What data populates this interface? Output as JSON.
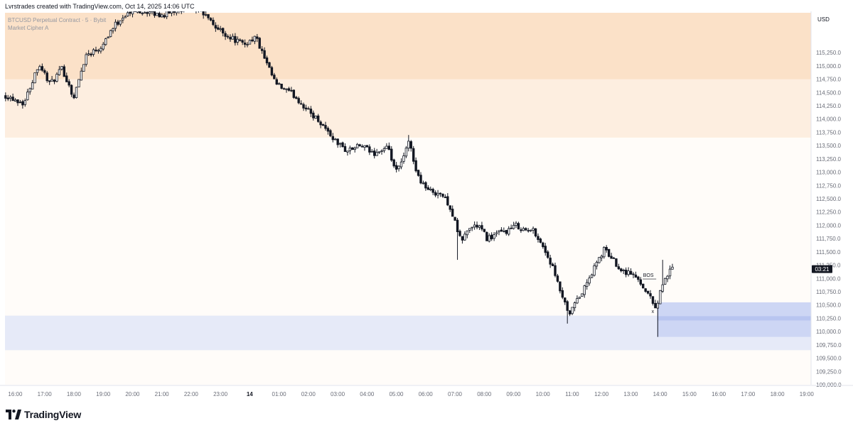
{
  "header": {
    "caption": "Lvrstrades created with TradingView.com, Oct 14, 2025 14:06 UTC"
  },
  "legend": {
    "line1": "BTCUSD Perpetual Contract · 5 · Bybit",
    "line2": "Market Cipher A"
  },
  "brand": {
    "name": "TradingView"
  },
  "colors": {
    "up": "#131722",
    "down": "#131722",
    "supply_outer": "#fdeee0",
    "supply_inner": "#fbe1c8",
    "demand_left": "#e6eaf8",
    "demand_right": "#cdd6f4",
    "demand_line": "#b8c5f0",
    "price_tag_bg": "#131722",
    "price_tag_text": "#ffffff",
    "plot_bg": "#fffcf9"
  },
  "chart_data": {
    "type": "candlestick",
    "symbol": "BTCUSD",
    "interval": "5",
    "currency_label": "USD",
    "ylim": [
      109000,
      116000
    ],
    "y_ticks": [
      109000,
      109250,
      109500,
      109750,
      110000,
      110250,
      110500,
      110750,
      111000,
      111250,
      111500,
      111750,
      112000,
      112250,
      112500,
      112750,
      113000,
      113250,
      113500,
      113750,
      114000,
      114250,
      114500,
      114750,
      115000,
      115250
    ],
    "y_tick_labels": [
      "109,000.0",
      "109,250.0",
      "109,500.0",
      "109,750.0",
      "110,000.0",
      "110,250.0",
      "110,500.0",
      "110,750.0",
      "111,000.0",
      "111,250.0",
      "111,500.0",
      "111,750.0",
      "112,000.0",
      "112,250.0",
      "112,500.0",
      "112,750.0",
      "113,000.0",
      "113,250.0",
      "113,500.0",
      "113,750.0",
      "114,000.0",
      "114,250.0",
      "114,500.0",
      "114,750.0",
      "115,000.0",
      "115,250.0"
    ],
    "x_range_hours": [
      15.65,
      43.15
    ],
    "x_ticks": [
      {
        "h": 16,
        "label": "16:00"
      },
      {
        "h": 17,
        "label": "17:00"
      },
      {
        "h": 18,
        "label": "18:00"
      },
      {
        "h": 19,
        "label": "19:00"
      },
      {
        "h": 20,
        "label": "20:00"
      },
      {
        "h": 21,
        "label": "21:00"
      },
      {
        "h": 22,
        "label": "22:00"
      },
      {
        "h": 23,
        "label": "23:00"
      },
      {
        "h": 24,
        "label": "14"
      },
      {
        "h": 25,
        "label": "01:00"
      },
      {
        "h": 26,
        "label": "02:00"
      },
      {
        "h": 27,
        "label": "03:00"
      },
      {
        "h": 28,
        "label": "04:00"
      },
      {
        "h": 29,
        "label": "05:00"
      },
      {
        "h": 30,
        "label": "06:00"
      },
      {
        "h": 31,
        "label": "07:00"
      },
      {
        "h": 32,
        "label": "08:00"
      },
      {
        "h": 33,
        "label": "09:00"
      },
      {
        "h": 34,
        "label": "10:00"
      },
      {
        "h": 35,
        "label": "11:00"
      },
      {
        "h": 36,
        "label": "12:00"
      },
      {
        "h": 37,
        "label": "13:00"
      },
      {
        "h": 38,
        "label": "14:00"
      },
      {
        "h": 39,
        "label": "15:00"
      },
      {
        "h": 40,
        "label": "16:00"
      },
      {
        "h": 41,
        "label": "17:00"
      },
      {
        "h": 42,
        "label": "18:00"
      },
      {
        "h": 43,
        "label": "19:00"
      }
    ],
    "price_path": [
      {
        "h": 15.65,
        "p": 114450
      },
      {
        "h": 16.3,
        "p": 114300
      },
      {
        "h": 16.5,
        "p": 114600
      },
      {
        "h": 16.8,
        "p": 115050
      },
      {
        "h": 17.2,
        "p": 114650
      },
      {
        "h": 17.6,
        "p": 114950
      },
      {
        "h": 18.0,
        "p": 114400
      },
      {
        "h": 18.4,
        "p": 115200
      },
      {
        "h": 18.9,
        "p": 115350
      },
      {
        "h": 19.3,
        "p": 115700
      },
      {
        "h": 19.7,
        "p": 115950
      },
      {
        "h": 20.2,
        "p": 116050
      },
      {
        "h": 21.0,
        "p": 115950
      },
      {
        "h": 21.7,
        "p": 116100
      },
      {
        "h": 22.3,
        "p": 116050
      },
      {
        "h": 22.9,
        "p": 115700
      },
      {
        "h": 23.3,
        "p": 115550
      },
      {
        "h": 23.8,
        "p": 115400
      },
      {
        "h": 24.2,
        "p": 115550
      },
      {
        "h": 24.6,
        "p": 115000
      },
      {
        "h": 24.9,
        "p": 114650
      },
      {
        "h": 25.5,
        "p": 114450
      },
      {
        "h": 26.0,
        "p": 114150
      },
      {
        "h": 26.4,
        "p": 113950
      },
      {
        "h": 26.9,
        "p": 113600
      },
      {
        "h": 27.3,
        "p": 113400
      },
      {
        "h": 27.8,
        "p": 113500
      },
      {
        "h": 28.2,
        "p": 113350
      },
      {
        "h": 28.7,
        "p": 113450
      },
      {
        "h": 29.0,
        "p": 113000
      },
      {
        "h": 29.2,
        "p": 113200
      },
      {
        "h": 29.45,
        "p": 113600
      },
      {
        "h": 29.7,
        "p": 112950
      },
      {
        "h": 30.1,
        "p": 112650
      },
      {
        "h": 30.5,
        "p": 112600
      },
      {
        "h": 30.8,
        "p": 112400
      },
      {
        "h": 31.0,
        "p": 112050
      },
      {
        "h": 31.2,
        "p": 111700
      },
      {
        "h": 31.5,
        "p": 111950
      },
      {
        "h": 31.8,
        "p": 112000
      },
      {
        "h": 32.1,
        "p": 111750
      },
      {
        "h": 32.5,
        "p": 111850
      },
      {
        "h": 32.8,
        "p": 111900
      },
      {
        "h": 33.1,
        "p": 112000
      },
      {
        "h": 33.4,
        "p": 111900
      },
      {
        "h": 33.7,
        "p": 111900
      },
      {
        "h": 34.0,
        "p": 111600
      },
      {
        "h": 34.3,
        "p": 111250
      },
      {
        "h": 34.5,
        "p": 110900
      },
      {
        "h": 34.7,
        "p": 110600
      },
      {
        "h": 34.9,
        "p": 110250
      },
      {
        "h": 35.0,
        "p": 110450
      },
      {
        "h": 35.2,
        "p": 110600
      },
      {
        "h": 35.5,
        "p": 110900
      },
      {
        "h": 35.8,
        "p": 111250
      },
      {
        "h": 36.1,
        "p": 111550
      },
      {
        "h": 36.4,
        "p": 111350
      },
      {
        "h": 36.7,
        "p": 111150
      },
      {
        "h": 37.0,
        "p": 111100
      },
      {
        "h": 37.3,
        "p": 110950
      },
      {
        "h": 37.55,
        "p": 110750
      },
      {
        "h": 37.75,
        "p": 110550
      },
      {
        "h": 37.88,
        "p": 110450
      },
      {
        "h": 38.0,
        "p": 110750
      },
      {
        "h": 38.15,
        "p": 111000
      },
      {
        "h": 38.3,
        "p": 111100
      },
      {
        "h": 38.45,
        "p": 111200
      }
    ],
    "wick_extremes": [
      {
        "h": 22.5,
        "p": 116100
      },
      {
        "h": 31.1,
        "p": 111350
      },
      {
        "h": 29.45,
        "p": 113700
      },
      {
        "h": 34.8,
        "p": 110150
      },
      {
        "h": 37.88,
        "p": 109900
      },
      {
        "h": 38.05,
        "p": 111350
      }
    ],
    "last_price": 111250,
    "countdown": "03:21",
    "zones": [
      {
        "kind": "supply",
        "from_h": 15.65,
        "to_h": 43.15,
        "low": 113650,
        "high": 116000
      },
      {
        "kind": "supply_core",
        "from_h": 15.65,
        "to_h": 43.15,
        "low": 114750,
        "high": 116000
      },
      {
        "kind": "demand",
        "from_h": 15.65,
        "to_h": 43.15,
        "low": 109650,
        "high": 110300
      },
      {
        "kind": "demand_right",
        "from_h": 37.9,
        "to_h": 43.15,
        "low": 109900,
        "high": 110550
      }
    ],
    "demand_midline": 110250,
    "annotations": [
      {
        "text": "BOS",
        "h": 37.6,
        "p": 111030
      },
      {
        "text": "x",
        "h": 37.75,
        "p": 110350
      }
    ]
  }
}
